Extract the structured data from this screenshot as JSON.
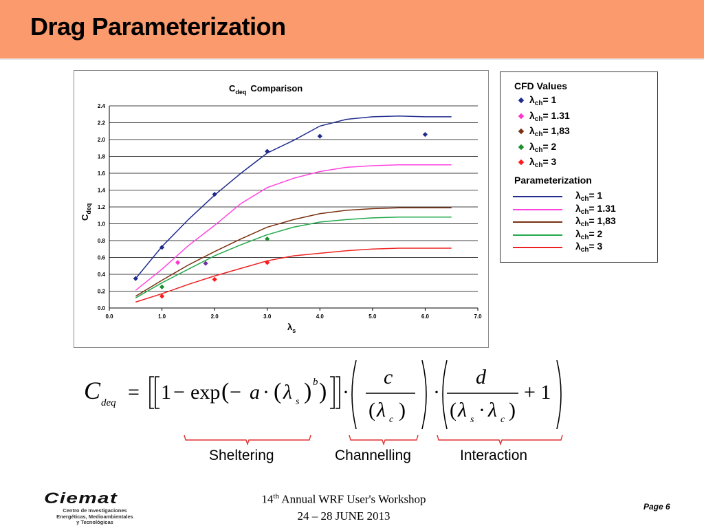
{
  "slide": {
    "title": "Drag Parameterization",
    "page": "Page 6",
    "footer": {
      "ordinal": "14",
      "ordinal_sup": "th",
      "line1_rest": " Annual WRF User's Workshop",
      "line2": "24 – 28 JUNE 2013"
    },
    "logo": {
      "name": "Ciemat",
      "line1": "Centro de Investigaciones",
      "line2": "Energéticas, Medioambientales",
      "line3": "y Tecnológicas"
    },
    "header_color": "#fb9a6c"
  },
  "chart_data": {
    "type": "line",
    "title_main": "C",
    "title_sub": "deq",
    "title_rest": "Comparison",
    "xlabel_main": "λ",
    "xlabel_sub": "s",
    "ylabel_main": "C",
    "ylabel_sub": "deq",
    "xlim": [
      0,
      7
    ],
    "ylim": [
      0,
      2.4
    ],
    "xticks": [
      "0.0",
      "1.0",
      "2.0",
      "3.0",
      "4.0",
      "5.0",
      "6.0",
      "7.0"
    ],
    "yticks": [
      "0.0",
      "0.2",
      "0.4",
      "0.6",
      "0.8",
      "1.0",
      "1.2",
      "1.4",
      "1.6",
      "1.8",
      "2.0",
      "2.2",
      "2.4"
    ],
    "grid": true,
    "scatter_series": [
      {
        "name": "λch= 1",
        "color": "#1f2a8c",
        "points": [
          [
            0.5,
            0.35
          ],
          [
            1.0,
            0.72
          ],
          [
            2.0,
            1.35
          ],
          [
            3.0,
            1.86
          ],
          [
            4.0,
            2.04
          ],
          [
            6.0,
            2.06
          ]
        ]
      },
      {
        "name": "λch= 1.31",
        "color": "#ff33cc",
        "points": [
          [
            1.3,
            0.54
          ]
        ]
      },
      {
        "name": "λch= 1,83",
        "color": "#7030a0",
        "points": [
          [
            1.83,
            0.53
          ]
        ]
      },
      {
        "name": "λch= 2",
        "color": "#1a8f2e",
        "points": [
          [
            1.0,
            0.25
          ],
          [
            3.0,
            0.82
          ]
        ]
      },
      {
        "name": "λch= 3",
        "color": "#ff1a1a",
        "points": [
          [
            1.0,
            0.14
          ],
          [
            2.0,
            0.34
          ],
          [
            3.0,
            0.54
          ]
        ]
      }
    ],
    "line_series": [
      {
        "name": "λch= 1",
        "color": "#1f2a8c",
        "points": [
          [
            0.5,
            0.35
          ],
          [
            1.0,
            0.73
          ],
          [
            1.5,
            1.05
          ],
          [
            2.0,
            1.34
          ],
          [
            2.5,
            1.6
          ],
          [
            3.0,
            1.84
          ],
          [
            3.5,
            1.99
          ],
          [
            4.0,
            2.16
          ],
          [
            4.5,
            2.24
          ],
          [
            5.0,
            2.27
          ],
          [
            5.5,
            2.28
          ],
          [
            6.0,
            2.27
          ],
          [
            6.5,
            2.27
          ]
        ]
      },
      {
        "name": "λch= 1.31",
        "color": "#ff44e0",
        "points": [
          [
            0.5,
            0.21
          ],
          [
            1.0,
            0.46
          ],
          [
            1.5,
            0.74
          ],
          [
            2.0,
            0.98
          ],
          [
            2.5,
            1.24
          ],
          [
            3.0,
            1.43
          ],
          [
            3.5,
            1.54
          ],
          [
            4.0,
            1.62
          ],
          [
            4.5,
            1.67
          ],
          [
            5.0,
            1.69
          ],
          [
            5.5,
            1.7
          ],
          [
            6.0,
            1.7
          ],
          [
            6.5,
            1.7
          ]
        ]
      },
      {
        "name": "λch= 1,83",
        "color": "#7a2f10",
        "points": [
          [
            0.5,
            0.14
          ],
          [
            1.0,
            0.33
          ],
          [
            1.5,
            0.51
          ],
          [
            2.0,
            0.67
          ],
          [
            2.5,
            0.82
          ],
          [
            3.0,
            0.96
          ],
          [
            3.5,
            1.05
          ],
          [
            4.0,
            1.12
          ],
          [
            4.5,
            1.16
          ],
          [
            5.0,
            1.18
          ],
          [
            5.5,
            1.19
          ],
          [
            6.0,
            1.19
          ],
          [
            6.5,
            1.19
          ]
        ]
      },
      {
        "name": "λch= 2",
        "color": "#22a84a",
        "points": [
          [
            0.5,
            0.12
          ],
          [
            1.0,
            0.3
          ],
          [
            1.5,
            0.46
          ],
          [
            2.0,
            0.62
          ],
          [
            2.5,
            0.75
          ],
          [
            3.0,
            0.87
          ],
          [
            3.5,
            0.96
          ],
          [
            4.0,
            1.02
          ],
          [
            4.5,
            1.05
          ],
          [
            5.0,
            1.07
          ],
          [
            5.5,
            1.08
          ],
          [
            6.0,
            1.08
          ],
          [
            6.5,
            1.08
          ]
        ]
      },
      {
        "name": "λch= 3",
        "color": "#ee2222",
        "points": [
          [
            0.5,
            0.07
          ],
          [
            1.0,
            0.17
          ],
          [
            1.5,
            0.28
          ],
          [
            2.0,
            0.38
          ],
          [
            2.5,
            0.47
          ],
          [
            3.0,
            0.56
          ],
          [
            3.5,
            0.62
          ],
          [
            4.0,
            0.65
          ],
          [
            4.5,
            0.68
          ],
          [
            5.0,
            0.7
          ],
          [
            5.5,
            0.71
          ],
          [
            6.0,
            0.71
          ],
          [
            6.5,
            0.71
          ]
        ]
      }
    ]
  },
  "legend": {
    "cfd_heading": "CFD Values",
    "param_heading": "Parameterization",
    "lambda": "λ",
    "sub": "ch",
    "values": [
      "= 1",
      "= 1.31",
      "= 1,83",
      "= 2",
      "= 3"
    ],
    "marker_colors": [
      "#1f2a8c",
      "#ff33cc",
      "#7a2f10",
      "#1a8f2e",
      "#ff1a1a"
    ],
    "line_colors": [
      "#1f2a8c",
      "#ff44e0",
      "#7a2f10",
      "#22a84a",
      "#ee2222"
    ]
  },
  "formula": {
    "lhs_main": "C",
    "lhs_sub": "deq",
    "equals": "=",
    "one": "1",
    "minus": "−",
    "exp": "exp",
    "a": "a",
    "dot": "·",
    "lambda": "λ",
    "sub_s": "s",
    "sub_c": "c",
    "power_b": "b",
    "c_num": "c",
    "d_num": "d",
    "plus_one": "+ 1"
  },
  "annotations": {
    "sheltering": "Sheltering",
    "channelling": "Channelling",
    "interaction": "Interaction",
    "brace_color": "#e03030"
  }
}
